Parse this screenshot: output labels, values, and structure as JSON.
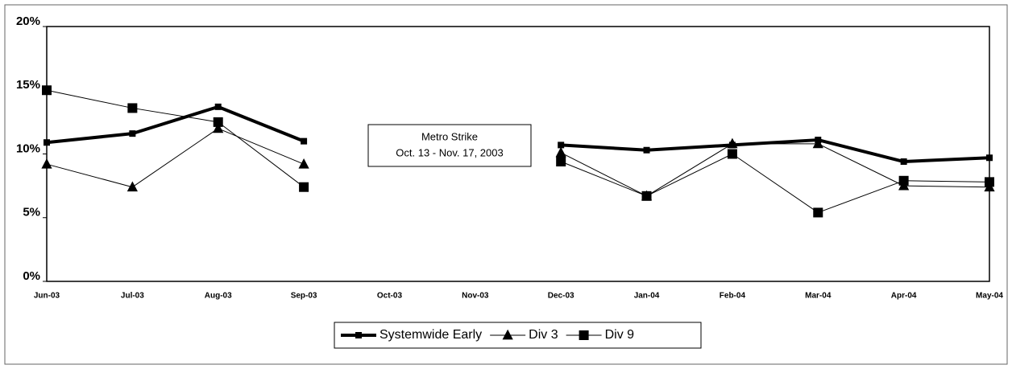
{
  "chart_data": {
    "type": "line",
    "categories": [
      "Jun-03",
      "Jul-03",
      "Aug-03",
      "Sep-03",
      "Oct-03",
      "Nov-03",
      "Dec-03",
      "Jan-04",
      "Feb-04",
      "Mar-04",
      "Apr-04",
      "May-04"
    ],
    "series": [
      {
        "name": "Systemwide Early",
        "color": "#000000",
        "marker": "square",
        "line_width": 4,
        "values": [
          10.9,
          11.6,
          13.7,
          11.0,
          null,
          null,
          10.7,
          10.3,
          10.7,
          11.1,
          9.4,
          9.7
        ]
      },
      {
        "name": "Div 3",
        "color": "#000000",
        "marker": "triangle",
        "line_width": 1,
        "values": [
          9.2,
          7.4,
          12.0,
          9.2,
          null,
          null,
          10.1,
          6.7,
          10.8,
          10.8,
          7.5,
          7.4
        ]
      },
      {
        "name": "Div 9",
        "color": "#000000",
        "marker": "square",
        "line_width": 1,
        "values": [
          15.0,
          13.6,
          12.5,
          7.4,
          null,
          null,
          9.4,
          6.7,
          10.0,
          5.4,
          7.9,
          7.8
        ]
      }
    ],
    "ylim": [
      0,
      20
    ],
    "yticks": [
      {
        "value": 0,
        "label": "0%"
      },
      {
        "value": 5,
        "label": "5%"
      },
      {
        "value": 10,
        "label": "10%"
      },
      {
        "value": 15,
        "label": "15%"
      },
      {
        "value": 20,
        "label": "20%"
      }
    ],
    "annotation": [
      "Metro Strike",
      "Oct. 13 - Nov. 17, 2003"
    ],
    "legend": "bottom"
  }
}
